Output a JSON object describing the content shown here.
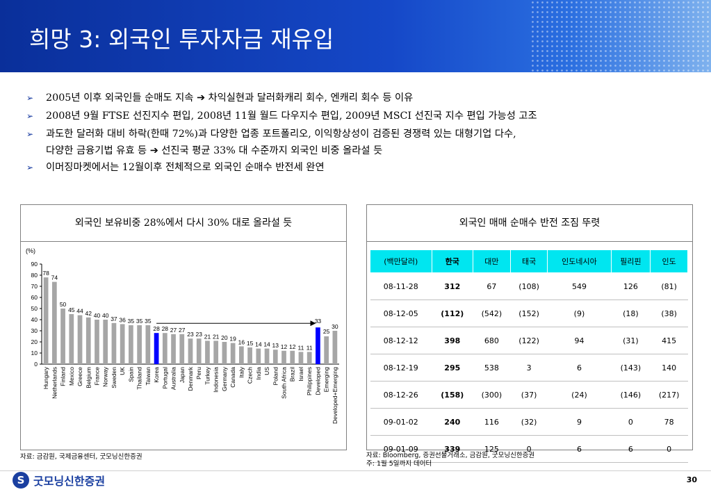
{
  "title": "희망 3: 외국인 투자자금 재유입",
  "bullets": [
    {
      "text": "2005년 이후 외국인들 순매도 지속 ➔ 차익실현과 달러화캐리 회수, 엔캐리 회수 등 이유"
    },
    {
      "text": "2008년 9월 FTSE 선진지수 편입, 2008년 11월 월드 다우지수 편입, 2009년 MSCI 선진국 지수 편입 가능성 고조"
    },
    {
      "text": "과도한 달러화 대비 하락(한때 72%)과 다양한 업종 포트폴리오, 이익항상성이 검증된 경쟁력 있는 대형기업 다수,",
      "text2": "다양한 금융기법 유효 등 ➔ 선진국 평균 33% 대 수준까지 외국인 비중 올라설 듯"
    },
    {
      "text": "이머징마켓에서는 12월이후 전체적으로 외국인 순매수 반전세 완연"
    }
  ],
  "left_panel": {
    "title": "외국인 보유비중 28%에서 다시 30% 대로 올라설 듯",
    "source": "자료: 금감원, 국제금융센터, 굿모닝신한증권"
  },
  "chart_data": {
    "type": "bar",
    "unit_label": "(%)",
    "ylim": [
      0,
      90
    ],
    "yticks": [
      0,
      10,
      20,
      30,
      40,
      50,
      60,
      70,
      80,
      90
    ],
    "categories": [
      "Hungary",
      "Netherlands",
      "Finland",
      "Mexico",
      "Greece",
      "Belgium",
      "France",
      "Norway",
      "Sweden",
      "UK",
      "Spain",
      "Thailand",
      "Taiwan",
      "Korea",
      "Portugal",
      "Australia",
      "Japan",
      "Denmark",
      "Peru",
      "Turkey",
      "Indonesia",
      "Germany",
      "Canada",
      "Italy",
      "Czech",
      "India",
      "US",
      "Poland",
      "South Africa",
      "Brazil",
      "Israel",
      "Philippines",
      "Developed",
      "Emerging",
      "Developed+Emerging"
    ],
    "values": [
      78,
      74,
      50,
      45,
      44,
      42,
      40,
      40,
      37,
      36,
      35,
      35,
      35,
      28,
      28,
      27,
      27,
      23,
      23,
      21,
      21,
      20,
      19,
      16,
      15,
      14,
      14,
      13,
      12,
      12,
      11,
      11,
      33,
      25,
      30
    ],
    "data_labels": [
      "78",
      "74",
      "50",
      "45",
      "44",
      "42",
      "40",
      "40",
      "37",
      "36",
      "35",
      "35",
      "35",
      "28",
      "28",
      "27",
      "27",
      "23",
      "23",
      "21",
      "21",
      "20",
      "19",
      "16",
      "15",
      "14",
      "14",
      "13",
      "12",
      "12",
      "11",
      "11",
      "33",
      "25",
      "30"
    ],
    "highlight": [
      "Korea",
      "Developed"
    ],
    "colors": {
      "default": "#a6a6a6",
      "highlight": "#0000ff"
    },
    "arrow": {
      "from": "Korea",
      "to": "Developed"
    },
    "grid": false,
    "legend": "none"
  },
  "right_panel": {
    "title": "외국인 매매 순매수 반전 조짐 뚜렷",
    "table": {
      "headers": [
        "(백만달러)",
        "한국",
        "대만",
        "태국",
        "인도네시아",
        "필리핀",
        "인도"
      ],
      "rows": [
        [
          "08-11-28",
          "312",
          "67",
          "(108)",
          "549",
          "126",
          "(81)"
        ],
        [
          "08-12-05",
          "(112)",
          "(542)",
          "(152)",
          "(9)",
          "(18)",
          "(38)"
        ],
        [
          "08-12-12",
          "398",
          "680",
          "(122)",
          "94",
          "(31)",
          "415"
        ],
        [
          "08-12-19",
          "295",
          "538",
          "3",
          "6",
          "(143)",
          "140"
        ],
        [
          "08-12-26",
          "(158)",
          "(300)",
          "(37)",
          "(24)",
          "(146)",
          "(217)"
        ],
        [
          "09-01-02",
          "240",
          "116",
          "(32)",
          "9",
          "0",
          "78"
        ],
        [
          "09-01-09",
          "339",
          "125",
          "0",
          "6",
          "6",
          "0"
        ]
      ]
    },
    "source": "자료: Bloomberg, 증권선물거래소, 금감원, 굿모닝신한증권",
    "note": "주: 1월 5일까지 데이터"
  },
  "footer": {
    "logo_text": "굿모닝신한증권",
    "logo_mark": "S",
    "page_number": "30"
  }
}
